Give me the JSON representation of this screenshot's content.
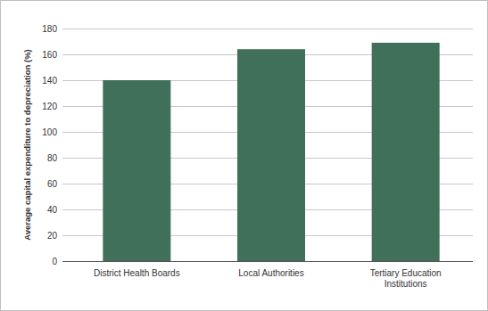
{
  "chart_data": {
    "type": "bar",
    "categories": [
      "District Health Boards",
      "Local Authorities",
      "Tertiary Education Institutions"
    ],
    "values": [
      140,
      164,
      169
    ],
    "color": "#41705a",
    "y_label": "Average capital expenditure to depreciation (%)",
    "ylim": [
      0,
      180
    ],
    "yticks": [
      0,
      20,
      40,
      60,
      80,
      100,
      120,
      140,
      160,
      180
    ],
    "grid": true
  }
}
